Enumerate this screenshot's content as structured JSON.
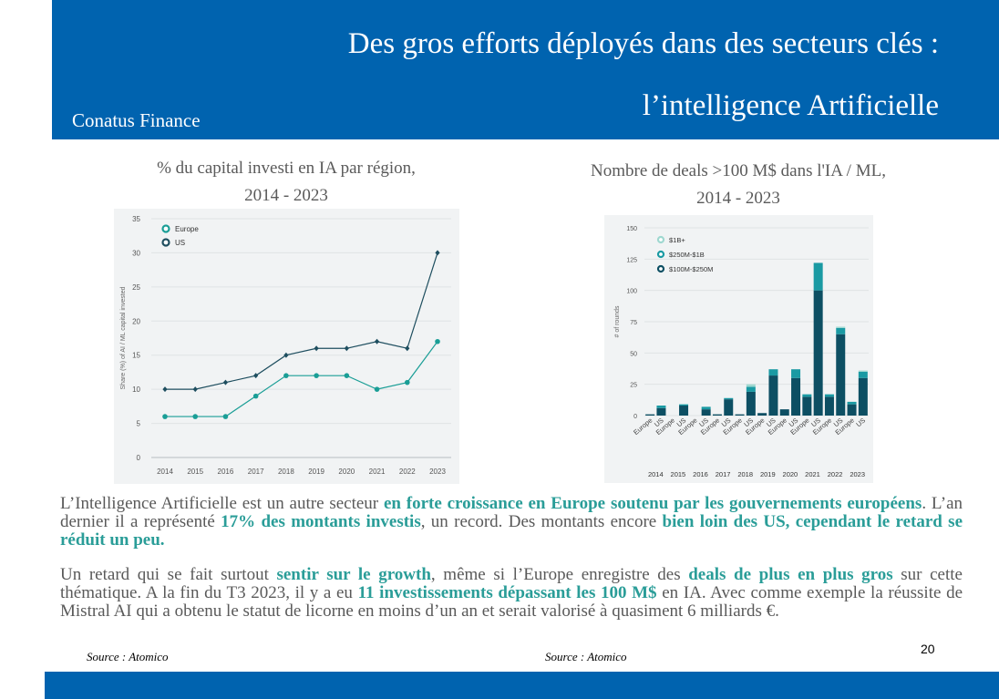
{
  "header": {
    "brand": "Conatus Finance",
    "title_line1": "Des gros efforts déployés dans des secteurs clés :",
    "title_line2": "l’intelligence Artificielle"
  },
  "left_chart": {
    "caption_line1": "% du capital investi en IA par région,",
    "caption_line2": "2014 - 2023",
    "source": "Source : Atomico"
  },
  "right_chart": {
    "caption_line1": "Nombre de deals >100 M$ dans l'IA / ML,",
    "caption_line2": "2014 - 2023",
    "source": "Source : Atomico"
  },
  "body": {
    "p1": [
      {
        "t": "L’Intelligence Artificielle est un autre secteur ",
        "h": false
      },
      {
        "t": "en forte croissance en Europe soutenu par les gouvernements européens",
        "h": true
      },
      {
        "t": ". L’an dernier il a représenté ",
        "h": false
      },
      {
        "t": "17% des montants investis",
        "h": true
      },
      {
        "t": ", un record. Des montants encore ",
        "h": false
      },
      {
        "t": "bien loin des US, cependant le retard se réduit un peu.",
        "h": true
      }
    ],
    "p2": [
      {
        "t": "Un retard qui se fait surtout ",
        "h": false
      },
      {
        "t": "sentir sur le growth",
        "h": true
      },
      {
        "t": ", même si l’Europe enregistre des ",
        "h": false
      },
      {
        "t": "deals de plus en plus gros",
        "h": true
      },
      {
        "t": " sur cette thématique. A la fin du T3 2023, il y a eu ",
        "h": false
      },
      {
        "t": "11 investissements dépassant les 100 M$",
        "h": true
      },
      {
        "t": " en IA. Avec comme exemple la réussite de Mistral AI qui a obtenu le statut de licorne en moins d’un an et serait valorisé à quasiment 6 milliards €.",
        "h": false
      }
    ]
  },
  "page_number": "20",
  "chart_data": [
    {
      "type": "line",
      "ylabel": "Share (%) of AI / ML capital invested",
      "xlabel": "",
      "x": [
        "2014",
        "2015",
        "2016",
        "2017",
        "2018",
        "2019",
        "2020",
        "2021",
        "2022",
        "2023"
      ],
      "ylim": [
        0,
        35
      ],
      "yticks": [
        0,
        5,
        10,
        15,
        20,
        25,
        30,
        35
      ],
      "grid": true,
      "legend_position": "top-left",
      "series": [
        {
          "name": "Europe",
          "color": "#1a9e96",
          "values": [
            6,
            6,
            6,
            9,
            12,
            12,
            12,
            10,
            11,
            17
          ]
        },
        {
          "name": "US",
          "color": "#1e4e5f",
          "values": [
            10,
            10,
            11,
            12,
            15,
            16,
            16,
            17,
            16,
            30
          ]
        }
      ]
    },
    {
      "type": "bar",
      "stacked": true,
      "ylabel": "# of rounds",
      "xlabel": "",
      "years": [
        "2014",
        "2015",
        "2016",
        "2017",
        "2018",
        "2019",
        "2020",
        "2021",
        "2022",
        "2023"
      ],
      "sub_categories": [
        "Europe",
        "US"
      ],
      "ylim": [
        0,
        150
      ],
      "yticks": [
        0,
        25,
        50,
        75,
        100,
        125,
        150
      ],
      "grid": true,
      "legend_position": "top-left",
      "series": [
        {
          "name": "$100M-$250M",
          "color": "#0d4f63",
          "values": [
            1,
            6,
            0,
            8,
            0,
            5,
            1,
            13,
            1,
            19,
            2,
            32,
            5,
            30,
            15,
            100,
            15,
            65,
            9,
            30
          ]
        },
        {
          "name": "$250M-$1B",
          "color": "#1a9aa3",
          "values": [
            0,
            2,
            0,
            1,
            0,
            2,
            0,
            1,
            0,
            4,
            0,
            5,
            0,
            7,
            2,
            22,
            2,
            5,
            2,
            5
          ]
        },
        {
          "name": "$1B+",
          "color": "#9fd8d0",
          "values": [
            0,
            0,
            0,
            0,
            0,
            0,
            0,
            0,
            0,
            2,
            0,
            0,
            0,
            0,
            0,
            0,
            0,
            1,
            0,
            1
          ]
        }
      ]
    }
  ]
}
